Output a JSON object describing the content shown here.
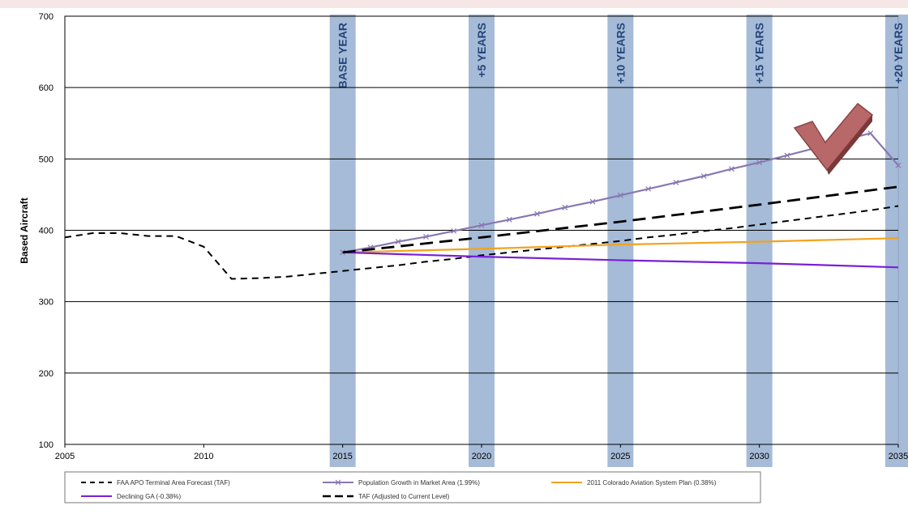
{
  "chart_data": {
    "type": "line",
    "title": "",
    "xlabel": "",
    "ylabel": "Based Aircraft",
    "xlim": [
      2005,
      2035
    ],
    "ylim": [
      100,
      700
    ],
    "grid": true,
    "legend_position": "bottom",
    "x_ticks": [
      2005,
      2010,
      2015,
      2020,
      2025,
      2030,
      2035
    ],
    "y_ticks": [
      100,
      200,
      300,
      400,
      500,
      600,
      700
    ],
    "milestones": [
      {
        "year": 2015,
        "label": "BASE YEAR"
      },
      {
        "year": 2020,
        "label": "+5 YEARS"
      },
      {
        "year": 2025,
        "label": "+10 YEARS"
      },
      {
        "year": 2030,
        "label": "+15 YEARS"
      },
      {
        "year": 2035,
        "label": "+20 YEARS"
      }
    ],
    "series": [
      {
        "name": "FAA APO Terminal Area Forecast (TAF)",
        "style": "dashed",
        "color": "#000000",
        "x": [
          2005,
          2006,
          2007,
          2008,
          2009,
          2010,
          2011,
          2012,
          2013,
          2014,
          2015,
          2016,
          2017,
          2018,
          2019,
          2020,
          2021,
          2022,
          2023,
          2024,
          2025,
          2026,
          2027,
          2028,
          2029,
          2030,
          2031,
          2032,
          2033,
          2034,
          2035
        ],
        "values": [
          390,
          396,
          396,
          392,
          392,
          377,
          332,
          333,
          335,
          339,
          343,
          347,
          351,
          356,
          360,
          365,
          369,
          373,
          377,
          381,
          385,
          390,
          394,
          399,
          403,
          408,
          413,
          418,
          423,
          428,
          434
        ]
      },
      {
        "name": "Population Growth in Market Area (1.99%)",
        "style": "solid-markers",
        "color": "#8878b0",
        "x": [
          2015,
          2016,
          2017,
          2018,
          2019,
          2020,
          2021,
          2022,
          2023,
          2024,
          2025,
          2026,
          2027,
          2028,
          2029,
          2030,
          2031,
          2032,
          2033,
          2034,
          2035
        ],
        "values": [
          369,
          376,
          384,
          391,
          399,
          407,
          415,
          423,
          432,
          440,
          449,
          458,
          467,
          476,
          486,
          495,
          505,
          515,
          526,
          536,
          491
        ]
      },
      {
        "name": "2011 Colorado Aviation System Plan (0.38%)",
        "style": "solid",
        "color": "#f4a21e",
        "x": [
          2015,
          2020,
          2025,
          2030,
          2035
        ],
        "values": [
          369,
          374,
          380,
          384,
          389
        ]
      },
      {
        "name": "Declining GA (-0.38%)",
        "style": "solid",
        "color": "#7a1fd6",
        "x": [
          2015,
          2020,
          2025,
          2030,
          2035
        ],
        "values": [
          369,
          363,
          358,
          354,
          348
        ]
      },
      {
        "name": "TAF (Adjusted to Current Level)",
        "style": "dashed-long",
        "color": "#000000",
        "x": [
          2015,
          2020,
          2025,
          2030,
          2035
        ],
        "values": [
          369,
          390,
          412,
          436,
          461
        ]
      }
    ]
  },
  "colors": {
    "milestone_band": "#9bb4d4",
    "milestone_text": "#24467a",
    "grid": "#000000",
    "checkmark": "#b86868",
    "top_banner": "#f6e6e6"
  },
  "decorations": {
    "checkmark_icon": "check-icon"
  }
}
